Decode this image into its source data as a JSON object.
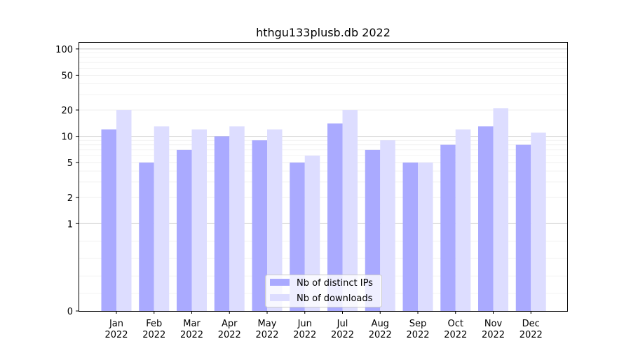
{
  "chart_data": {
    "type": "bar",
    "title": "hthgu133plusb.db 2022",
    "xlabel": "",
    "ylabel": "",
    "y_scale": "symlog",
    "ylim": [
      0,
      120
    ],
    "y_ticks": [
      0,
      1,
      2,
      5,
      10,
      20,
      50,
      100
    ],
    "categories": [
      [
        "Jan",
        "2022"
      ],
      [
        "Feb",
        "2022"
      ],
      [
        "Mar",
        "2022"
      ],
      [
        "Apr",
        "2022"
      ],
      [
        "May",
        "2022"
      ],
      [
        "Jun",
        "2022"
      ],
      [
        "Jul",
        "2022"
      ],
      [
        "Aug",
        "2022"
      ],
      [
        "Sep",
        "2022"
      ],
      [
        "Oct",
        "2022"
      ],
      [
        "Nov",
        "2022"
      ],
      [
        "Dec",
        "2022"
      ]
    ],
    "series": [
      {
        "name": "Nb of distinct IPs",
        "color": "#aaaaff",
        "values": [
          12,
          5,
          7,
          10,
          9,
          5,
          14,
          7,
          5,
          8,
          13,
          8
        ]
      },
      {
        "name": "Nb of downloads",
        "color": "#ddddff",
        "values": [
          20,
          13,
          12,
          13,
          12,
          6,
          20,
          9,
          5,
          12,
          21,
          11
        ]
      }
    ],
    "legend": {
      "position": "bottom-center"
    },
    "grid": true
  }
}
